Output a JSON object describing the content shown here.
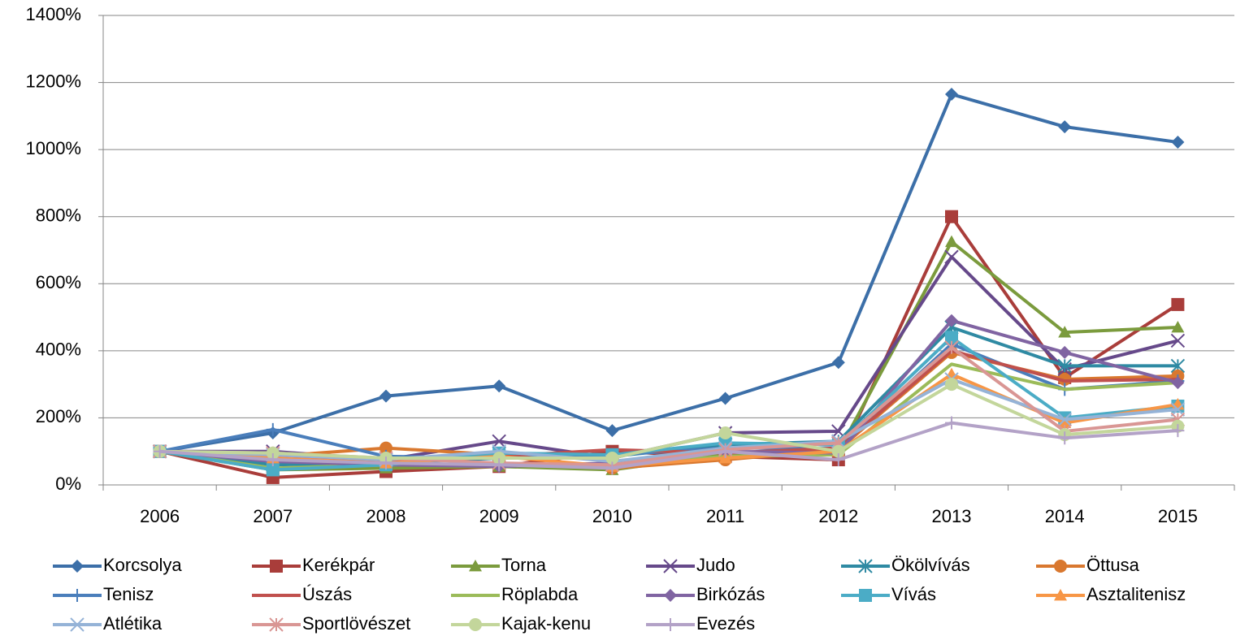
{
  "chart_data": {
    "type": "line",
    "categories": [
      "2006",
      "2007",
      "2008",
      "2009",
      "2010",
      "2011",
      "2012",
      "2013",
      "2014",
      "2015"
    ],
    "ylim": [
      0,
      1400
    ],
    "yticks": [
      {
        "value": 0,
        "label": "0%"
      },
      {
        "value": 200,
        "label": "200%"
      },
      {
        "value": 400,
        "label": "400%"
      },
      {
        "value": 600,
        "label": "600%"
      },
      {
        "value": 800,
        "label": "800%"
      },
      {
        "value": 1000,
        "label": "1000%"
      },
      {
        "value": 1200,
        "label": "1200%"
      },
      {
        "value": 1400,
        "label": "1400%"
      }
    ],
    "grid": true,
    "legend": "bottom",
    "series": [
      {
        "name": "Korcsolya",
        "color": "#3c6fa8",
        "marker": "diamond",
        "values": [
          100,
          155,
          265,
          295,
          162,
          258,
          365,
          1165,
          1068,
          1022
        ]
      },
      {
        "name": "Kerékpár",
        "color": "#a93d3a",
        "marker": "square",
        "values": [
          100,
          22,
          40,
          55,
          100,
          85,
          75,
          800,
          320,
          538
        ]
      },
      {
        "name": "Torna",
        "color": "#7b9b3d",
        "marker": "triangle",
        "values": [
          100,
          45,
          50,
          55,
          45,
          90,
          100,
          725,
          455,
          470
        ]
      },
      {
        "name": "Judo",
        "color": "#66498a",
        "marker": "x",
        "values": [
          100,
          100,
          75,
          130,
          80,
          155,
          160,
          680,
          345,
          430
        ]
      },
      {
        "name": "Ökölvívás",
        "color": "#2f8aa3",
        "marker": "asterisk",
        "values": [
          100,
          60,
          65,
          80,
          85,
          120,
          130,
          470,
          355,
          355
        ]
      },
      {
        "name": "Öttusa",
        "color": "#d9782f",
        "marker": "circle",
        "values": [
          100,
          85,
          110,
          90,
          50,
          75,
          105,
          395,
          315,
          325
        ]
      },
      {
        "name": "Tenisz",
        "color": "#4a7ebb",
        "marker": "plus",
        "values": [
          100,
          165,
          85,
          80,
          90,
          110,
          110,
          420,
          285,
          310
        ]
      },
      {
        "name": "Úszás",
        "color": "#c0504d",
        "marker": "none",
        "values": [
          100,
          80,
          70,
          85,
          105,
          95,
          110,
          400,
          310,
          315
        ]
      },
      {
        "name": "Röplabda",
        "color": "#9bbb59",
        "marker": "none",
        "values": [
          100,
          50,
          60,
          60,
          60,
          85,
          90,
          360,
          285,
          305
        ]
      },
      {
        "name": "Birkózás",
        "color": "#8064a2",
        "marker": "diamond",
        "values": [
          100,
          70,
          60,
          55,
          65,
          100,
          95,
          490,
          395,
          305
        ]
      },
      {
        "name": "Vívás",
        "color": "#4bacc6",
        "marker": "square",
        "values": [
          100,
          45,
          60,
          95,
          90,
          125,
          120,
          440,
          200,
          235
        ]
      },
      {
        "name": "Asztalitenisz",
        "color": "#f79646",
        "marker": "triangle",
        "values": [
          100,
          80,
          65,
          85,
          55,
          80,
          100,
          330,
          185,
          240
        ]
      },
      {
        "name": "Atlétika",
        "color": "#95b3d7",
        "marker": "x",
        "values": [
          100,
          90,
          75,
          100,
          70,
          110,
          130,
          315,
          195,
          225
        ]
      },
      {
        "name": "Sportlövészet",
        "color": "#d99694",
        "marker": "asterisk",
        "values": [
          100,
          95,
          80,
          65,
          60,
          105,
          125,
          410,
          160,
          195
        ]
      },
      {
        "name": "Kajak-kenu",
        "color": "#c3d69b",
        "marker": "circle",
        "values": [
          100,
          95,
          80,
          80,
          80,
          155,
          100,
          300,
          150,
          175
        ]
      },
      {
        "name": "Evezés",
        "color": "#b3a2c7",
        "marker": "plus",
        "values": [
          100,
          75,
          65,
          60,
          50,
          100,
          75,
          185,
          140,
          162
        ]
      }
    ]
  }
}
